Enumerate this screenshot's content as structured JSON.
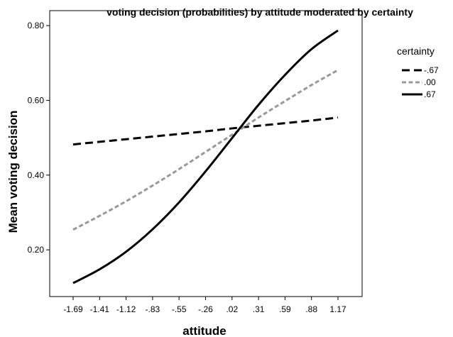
{
  "chart_data": {
    "type": "line",
    "title": "voting decision (probabilities) by attitude moderated by certainty",
    "xlabel": "attitude",
    "ylabel": "Mean voting decision",
    "categories": [
      "-1.69",
      "-1.41",
      "-1.12",
      "-.83",
      "-.55",
      "-.26",
      ".02",
      ".31",
      ".59",
      ".88",
      "1.17"
    ],
    "x": [
      -1.69,
      -1.41,
      -1.12,
      -0.83,
      -0.55,
      -0.26,
      0.02,
      0.31,
      0.59,
      0.88,
      1.17
    ],
    "ylim": [
      0.075,
      0.84
    ],
    "y_ticks": [
      0.2,
      0.4,
      0.6,
      0.8
    ],
    "y_tick_labels": [
      "0.20",
      "0.40",
      "0.60",
      "0.80"
    ],
    "grid": false,
    "legend": {
      "title": "certainty",
      "position": "right"
    },
    "series": [
      {
        "name": "-.67",
        "color": "#000000",
        "dash": "dashed",
        "values": [
          0.482,
          0.489,
          0.496,
          0.503,
          0.51,
          0.517,
          0.525,
          0.532,
          0.539,
          0.546,
          0.554
        ]
      },
      {
        "name": ".00",
        "color": "#999999",
        "dash": "dotted",
        "values": [
          0.254,
          0.291,
          0.33,
          0.372,
          0.416,
          0.462,
          0.508,
          0.554,
          0.598,
          0.641,
          0.681
        ]
      },
      {
        "name": ".67",
        "color": "#000000",
        "dash": "solid",
        "values": [
          0.111,
          0.148,
          0.195,
          0.255,
          0.327,
          0.41,
          0.499,
          0.588,
          0.668,
          0.737,
          0.787
        ]
      }
    ]
  }
}
